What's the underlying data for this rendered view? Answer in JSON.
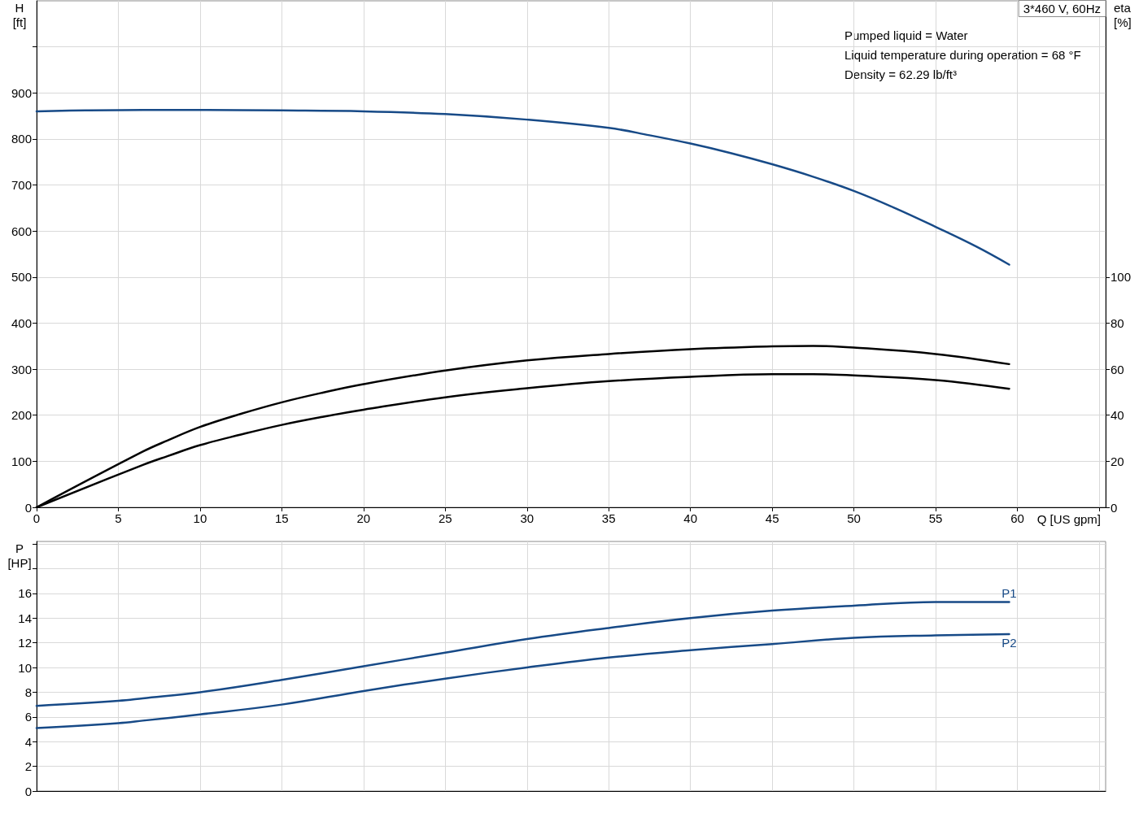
{
  "chart_data": [
    {
      "type": "line",
      "title": "3*460 V, 60Hz",
      "xlabel": "Q [US gpm]",
      "ylabel": "H\n[ft]",
      "y2label": "eta\n[%]",
      "annotations": [
        "Pumped liquid = Water",
        "Liquid temperature during operation = 68 °F",
        "Density = 62.29 lb/ft³"
      ],
      "xlim": [
        0,
        65.4
      ],
      "xticks": [
        0,
        5,
        10,
        15,
        20,
        25,
        30,
        35,
        40,
        45,
        50,
        55,
        60,
        {
          "value": 65,
          "label": null
        }
      ],
      "ylim": [
        0,
        1100
      ],
      "yticks": [
        0,
        100,
        200,
        300,
        400,
        500,
        600,
        700,
        800,
        900,
        {
          "value": 1000,
          "label": null
        }
      ],
      "y2lim": [
        0,
        220
      ],
      "y2ticks": [
        0,
        20,
        40,
        60,
        80,
        100
      ],
      "grid": true,
      "marker": "none",
      "series": [
        {
          "color": "#174a87",
          "x": [
            0,
            3,
            6.5,
            10,
            15,
            20,
            25,
            30,
            35,
            37.5,
            40,
            42.5,
            45,
            47.5,
            50,
            52.5,
            55,
            57.5,
            59.5
          ],
          "values": [
            860,
            862,
            863,
            863,
            862,
            860,
            854,
            842,
            824,
            808,
            790,
            769,
            745,
            718,
            687,
            650,
            609,
            566,
            527
          ]
        },
        {
          "color": "#000000",
          "axis": "y2",
          "x": [
            0,
            6.5,
            8,
            10,
            12.5,
            15,
            17.5,
            20,
            25,
            30,
            35,
            40,
            45,
            47.5,
            50,
            55,
            59.5
          ],
          "values": [
            0,
            24.2,
            29,
            34.9,
            40.6,
            45.6,
            49.8,
            53.5,
            59.4,
            63.8,
            66.6,
            68.7,
            69.9,
            70.1,
            69.4,
            66.6,
            62.2
          ]
        },
        {
          "color": "#000000",
          "axis": "y2",
          "x": [
            0,
            6.5,
            8,
            10,
            12.5,
            15,
            17.5,
            20,
            25,
            30,
            35,
            40,
            45,
            47.5,
            50,
            55,
            59.5
          ],
          "values": [
            0,
            18.4,
            22.2,
            27,
            31.6,
            35.8,
            39.3,
            42.4,
            47.8,
            51.7,
            54.8,
            56.7,
            57.8,
            57.8,
            57.3,
            55.3,
            51.5
          ]
        }
      ]
    },
    {
      "type": "line",
      "ylabel": "P\n[HP]",
      "xlim": [
        0,
        65.4
      ],
      "xticks": [
        0,
        5,
        10,
        15,
        20,
        25,
        30,
        35,
        40,
        45,
        50,
        55,
        60,
        {
          "value": 65,
          "label": null
        }
      ],
      "ylim": [
        0,
        20.2
      ],
      "yticks": [
        0,
        2,
        4,
        6,
        8,
        10,
        12,
        14,
        16,
        {
          "value": 18,
          "label": null
        },
        {
          "value": 20,
          "label": null
        }
      ],
      "tick_labels": "y",
      "grid": true,
      "marker": "none",
      "series": [
        {
          "name": "P1",
          "color": "#174a87",
          "x": [
            0,
            5,
            6.5,
            10,
            15,
            20,
            25,
            30,
            35,
            40,
            45,
            50,
            55,
            59.5
          ],
          "values": [
            6.9,
            7.3,
            7.5,
            8.0,
            9.0,
            10.1,
            11.2,
            12.3,
            13.2,
            14.0,
            14.6,
            15.0,
            15.3,
            15.3
          ]
        },
        {
          "name": "P2",
          "color": "#174a87",
          "x": [
            0,
            5,
            6.5,
            10,
            15,
            20,
            25,
            30,
            35,
            40,
            45,
            50,
            55,
            59.5
          ],
          "values": [
            5.1,
            5.5,
            5.7,
            6.2,
            7.0,
            8.1,
            9.1,
            10.0,
            10.8,
            11.4,
            11.9,
            12.4,
            12.6,
            12.7
          ]
        }
      ]
    }
  ]
}
